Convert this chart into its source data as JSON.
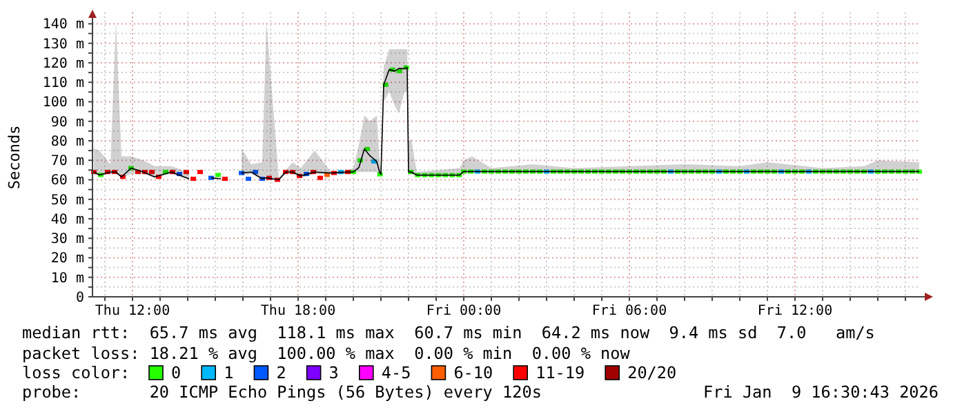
{
  "chart_data": {
    "type": "scatter",
    "ylabel": "Seconds",
    "legend_title": "loss color:",
    "legend": "bottom",
    "grid": true,
    "marker": "square",
    "xlim": [
      "2026-01-08T10:33",
      "2026-01-09T16:33"
    ],
    "xticks": [
      {
        "value": "2026-01-08T11:00",
        "label": null
      },
      {
        "value": "2026-01-08T12:00",
        "label": "Thu 12:00"
      },
      {
        "value": "2026-01-08T13:00",
        "label": null
      },
      {
        "value": "2026-01-08T14:00",
        "label": null
      },
      {
        "value": "2026-01-08T15:00",
        "label": null
      },
      {
        "value": "2026-01-08T16:00",
        "label": null
      },
      {
        "value": "2026-01-08T17:00",
        "label": null
      },
      {
        "value": "2026-01-08T18:00",
        "label": "Thu 18:00"
      },
      {
        "value": "2026-01-08T19:00",
        "label": null
      },
      {
        "value": "2026-01-08T20:00",
        "label": null
      },
      {
        "value": "2026-01-08T21:00",
        "label": null
      },
      {
        "value": "2026-01-08T22:00",
        "label": null
      },
      {
        "value": "2026-01-08T23:00",
        "label": null
      },
      {
        "value": "2026-01-09T00:00",
        "label": "Fri 00:00"
      },
      {
        "value": "2026-01-09T01:00",
        "label": null
      },
      {
        "value": "2026-01-09T02:00",
        "label": null
      },
      {
        "value": "2026-01-09T03:00",
        "label": null
      },
      {
        "value": "2026-01-09T04:00",
        "label": null
      },
      {
        "value": "2026-01-09T05:00",
        "label": null
      },
      {
        "value": "2026-01-09T06:00",
        "label": "Fri 06:00"
      },
      {
        "value": "2026-01-09T07:00",
        "label": null
      },
      {
        "value": "2026-01-09T08:00",
        "label": null
      },
      {
        "value": "2026-01-09T09:00",
        "label": null
      },
      {
        "value": "2026-01-09T10:00",
        "label": null
      },
      {
        "value": "2026-01-09T11:00",
        "label": null
      },
      {
        "value": "2026-01-09T12:00",
        "label": "Fri 12:00"
      },
      {
        "value": "2026-01-09T13:00",
        "label": null
      },
      {
        "value": "2026-01-09T14:00",
        "label": null
      },
      {
        "value": "2026-01-09T15:00",
        "label": null
      },
      {
        "value": "2026-01-09T16:00",
        "label": null
      }
    ],
    "ylim": [
      0,
      143
    ],
    "yticks": [
      0,
      {
        "value": 5,
        "label": null
      },
      {
        "value": 10,
        "label": "10 m"
      },
      {
        "value": 15,
        "label": null
      },
      {
        "value": 20,
        "label": "20 m"
      },
      {
        "value": 25,
        "label": null
      },
      {
        "value": 30,
        "label": "30 m"
      },
      {
        "value": 35,
        "label": null
      },
      {
        "value": 40,
        "label": "40 m"
      },
      {
        "value": 45,
        "label": null
      },
      {
        "value": 50,
        "label": "50 m"
      },
      {
        "value": 55,
        "label": null
      },
      {
        "value": 60,
        "label": "60 m"
      },
      {
        "value": 65,
        "label": null
      },
      {
        "value": 70,
        "label": "70 m"
      },
      {
        "value": 75,
        "label": null
      },
      {
        "value": 80,
        "label": "80 m"
      },
      {
        "value": 85,
        "label": null
      },
      {
        "value": 90,
        "label": "90 m"
      },
      {
        "value": 95,
        "label": null
      },
      {
        "value": 100,
        "label": "100 m"
      },
      {
        "value": 105,
        "label": null
      },
      {
        "value": 110,
        "label": "110 m"
      },
      {
        "value": 115,
        "label": null
      },
      {
        "value": 120,
        "label": "120 m"
      },
      {
        "value": 125,
        "label": null
      },
      {
        "value": 130,
        "label": "130 m"
      },
      {
        "value": 135,
        "label": null
      },
      {
        "value": 140,
        "label": "140 m"
      }
    ],
    "series": [
      {
        "type": "line",
        "color": "#000000",
        "marker": "none",
        "x": [
          "2026-01-08T10:36",
          "2026-01-08T10:48",
          "2026-01-08T11:12",
          "2026-01-08T11:24",
          "2026-01-08T11:36",
          "2026-01-08T11:57",
          "2026-01-08T12:24",
          "2026-01-08T12:48",
          "2026-01-08T13:24",
          "2026-01-08T14:03",
          "2026-01-08T14:12",
          "2026-01-08T14:24",
          "2026-01-08T14:36",
          "2026-01-08T14:51",
          "2026-01-08T15:12",
          "2026-01-08T15:30",
          "2026-01-08T15:57",
          "2026-01-08T16:18",
          "2026-01-08T16:42",
          "2026-01-08T16:51",
          "2026-01-08T17:18",
          "2026-01-08T17:33",
          "2026-01-08T17:48",
          "2026-01-08T18:06",
          "2026-01-08T18:36",
          "2026-01-08T19:12",
          "2026-01-08T19:48",
          "2026-01-08T20:00",
          "2026-01-08T20:12",
          "2026-01-08T20:24",
          "2026-01-08T20:36",
          "2026-01-08T20:51",
          "2026-01-08T20:57",
          "2026-01-08T21:00",
          "2026-01-08T21:06",
          "2026-01-08T21:18",
          "2026-01-08T21:30",
          "2026-01-08T21:39",
          "2026-01-08T21:51",
          "2026-01-08T21:57",
          "2026-01-08T22:00",
          "2026-01-08T22:06",
          "2026-01-08T22:18",
          "2026-01-08T23:51",
          "2026-01-09T00:00",
          "2026-01-09T00:18",
          "2026-01-09T01:00",
          "2026-01-09T02:30",
          "2026-01-09T04:00",
          "2026-01-09T06:00",
          "2026-01-09T08:00",
          "2026-01-09T10:00",
          "2026-01-09T11:00",
          "2026-01-09T13:00",
          "2026-01-09T14:30",
          "2026-01-09T15:00",
          "2026-01-09T16:30"
        ],
        "values": [
          64,
          62.5,
          64,
          64,
          61.5,
          66,
          64,
          61.5,
          64,
          60.5,
          null,
          null,
          null,
          61,
          60.5,
          null,
          63.5,
          64,
          60.5,
          61,
          60,
          64,
          64,
          62,
          64,
          63.5,
          64,
          64,
          66.3,
          75.8,
          72.3,
          69.4,
          64,
          62.8,
          108.7,
          116.5,
          115.7,
          117.1,
          117,
          117.6,
          64,
          64,
          62.4,
          62.4,
          64.2,
          64.2,
          64.2,
          64.2,
          64.2,
          64.2,
          64.2,
          64.2,
          64.2,
          64.2,
          64.2,
          64.2,
          64.2
        ],
        "lower": [
          63,
          62,
          63,
          63,
          61,
          63,
          63,
          61,
          63,
          60,
          null,
          null,
          null,
          null,
          null,
          null,
          62,
          63,
          60,
          60,
          60,
          63,
          63,
          61,
          63,
          63,
          63,
          64,
          64,
          64,
          64,
          64,
          63,
          62,
          100,
          105,
          98,
          94,
          105,
          105,
          63,
          63,
          62,
          62,
          64,
          64,
          64,
          64,
          64,
          64,
          64,
          64,
          64,
          64,
          64,
          64,
          64
        ],
        "upper": [
          76,
          75,
          68,
          141.5,
          72,
          72,
          70,
          67,
          67,
          64,
          null,
          null,
          null,
          null,
          null,
          null,
          76,
          68,
          69,
          141.5,
          61,
          65,
          69,
          66,
          75,
          64,
          65,
          66,
          78,
          93,
          90,
          93,
          70,
          64,
          118,
          127,
          127,
          127,
          127,
          127,
          80,
          81,
          64,
          66,
          70,
          72,
          66,
          68,
          66,
          67,
          68,
          67,
          69,
          66,
          67,
          70,
          69
        ]
      },
      {
        "name": "0",
        "color": "#26ff00",
        "x": [
          "2026-01-08T10:51",
          "2026-01-08T11:57",
          "2026-01-08T13:12",
          "2026-01-08T15:06",
          "2026-01-08T20:00",
          "2026-01-08T20:15",
          "2026-01-08T20:30",
          "2026-01-08T20:58",
          "2026-01-08T21:10",
          "2026-01-08T21:25",
          "2026-01-08T21:40",
          "2026-01-08T21:55",
          "2026-01-08T22:05",
          "2026-01-08T22:20",
          "2026-01-08T22:35",
          "2026-01-08T22:50",
          "2026-01-08T23:05",
          "2026-01-08T23:20",
          "2026-01-08T23:35",
          "2026-01-08T23:50",
          "2026-01-09T00:00",
          "2026-01-09T00:15",
          "2026-01-09T00:45",
          "2026-01-09T01:00",
          "2026-01-09T01:15",
          "2026-01-09T01:30",
          "2026-01-09T01:45",
          "2026-01-09T02:00",
          "2026-01-09T02:15",
          "2026-01-09T02:30",
          "2026-01-09T02:45",
          "2026-01-09T03:15",
          "2026-01-09T03:30",
          "2026-01-09T03:45",
          "2026-01-09T04:00",
          "2026-01-09T04:15",
          "2026-01-09T04:30",
          "2026-01-09T04:45",
          "2026-01-09T05:00",
          "2026-01-09T05:15",
          "2026-01-09T05:30",
          "2026-01-09T05:45",
          "2026-01-09T06:00",
          "2026-01-09T06:15",
          "2026-01-09T06:30",
          "2026-01-09T06:45",
          "2026-01-09T07:00",
          "2026-01-09T07:15",
          "2026-01-09T07:45",
          "2026-01-09T08:00",
          "2026-01-09T08:15",
          "2026-01-09T08:30",
          "2026-01-09T08:45",
          "2026-01-09T09:00",
          "2026-01-09T09:30",
          "2026-01-09T09:45",
          "2026-01-09T10:00",
          "2026-01-09T10:30",
          "2026-01-09T10:45",
          "2026-01-09T11:00",
          "2026-01-09T11:15",
          "2026-01-09T11:45",
          "2026-01-09T12:00",
          "2026-01-09T12:15",
          "2026-01-09T12:45",
          "2026-01-09T13:00",
          "2026-01-09T13:15",
          "2026-01-09T13:30",
          "2026-01-09T13:45",
          "2026-01-09T14:00",
          "2026-01-09T14:15",
          "2026-01-09T14:30",
          "2026-01-09T15:00",
          "2026-01-09T15:15",
          "2026-01-09T15:30",
          "2026-01-09T15:45",
          "2026-01-09T16:00",
          "2026-01-09T16:15",
          "2026-01-09T16:30"
        ],
        "values": [
          62.5,
          66,
          64,
          62.5,
          64,
          70,
          75.8,
          62.8,
          108.7,
          116.5,
          115.7,
          117.6,
          64,
          62.4,
          62.4,
          62.4,
          62.4,
          62.4,
          62.4,
          62.4,
          64.2,
          64.2,
          64.2,
          64.2,
          64.2,
          64.2,
          64.2,
          64.2,
          64.2,
          64.2,
          64.2,
          64.2,
          64.2,
          64.2,
          64.2,
          64.2,
          64.2,
          64.2,
          64.2,
          64.2,
          64.2,
          64.2,
          64.2,
          64.2,
          64.2,
          64.2,
          64.2,
          64.2,
          64.2,
          64.2,
          64.2,
          64.2,
          64.2,
          64.2,
          64.2,
          64.2,
          64.2,
          64.2,
          64.2,
          64.2,
          64.2,
          64.2,
          64.2,
          64.2,
          64.2,
          64.2,
          64.2,
          64.2,
          64.2,
          64.2,
          64.2,
          64.2,
          64.2,
          64.2,
          64.2,
          64.2,
          64.2,
          64.2,
          64.2
        ]
      },
      {
        "name": "1",
        "color": "#00b8ff",
        "x": [
          "2026-01-08T19:33",
          "2026-01-08T20:45",
          "2026-01-09T00:30",
          "2026-01-09T03:00",
          "2026-01-09T07:30",
          "2026-01-09T09:15",
          "2026-01-09T10:15",
          "2026-01-09T11:30",
          "2026-01-09T12:30",
          "2026-01-09T14:45"
        ],
        "values": [
          64,
          69.4,
          64.2,
          64.2,
          64.2,
          64.2,
          64.2,
          64.2,
          64.2,
          64.2
        ]
      },
      {
        "name": "2",
        "color": "#0059ff",
        "x": [
          "2026-01-08T13:42",
          "2026-01-08T14:51",
          "2026-01-08T15:57",
          "2026-01-08T16:12",
          "2026-01-08T16:27",
          "2026-01-08T16:42",
          "2026-01-08T18:18"
        ],
        "values": [
          63,
          61,
          63.5,
          60.5,
          64,
          60.5,
          63
        ]
      },
      {
        "name": "3",
        "color": "#7e00ff"
      },
      {
        "name": "4-5",
        "color": "#ff00ff"
      },
      {
        "name": "6-10",
        "color": "#ff5e00",
        "x": [
          "2026-01-08T19:03"
        ],
        "values": [
          62.5
        ]
      },
      {
        "name": "11-19",
        "color": "#ff0000",
        "x": [
          "2026-01-08T10:36",
          "2026-01-08T11:06",
          "2026-01-08T11:21",
          "2026-01-08T11:39",
          "2026-01-08T12:12",
          "2026-01-08T12:27",
          "2026-01-08T12:42",
          "2026-01-08T12:57",
          "2026-01-08T13:27",
          "2026-01-08T13:57",
          "2026-01-08T14:12",
          "2026-01-08T14:27",
          "2026-01-08T15:21",
          "2026-01-08T16:57",
          "2026-01-08T17:15",
          "2026-01-08T17:33",
          "2026-01-08T17:48",
          "2026-01-08T18:03",
          "2026-01-08T18:33",
          "2026-01-08T18:48",
          "2026-01-08T19:18",
          "2026-01-08T19:48"
        ],
        "values": [
          64,
          64,
          64,
          61.5,
          64,
          64,
          64,
          61.5,
          64,
          64,
          60.5,
          64,
          60.5,
          61,
          60,
          64,
          64,
          62,
          64,
          61,
          63.5,
          64
        ]
      },
      {
        "name": "20/20",
        "color": "#a10000"
      }
    ],
    "annotations": [
      "median rtt:  65.7 ms avg  118.1 ms max  60.7 ms min  64.2 ms now  9.4 ms sd  7.0   am/s",
      "packet loss: 18.21 % avg  100.00 % max  0.00 % min  0.00 % now",
      "probe:       20 ICMP Echo Pings (56 Bytes) every 120s",
      "Fri Jan  9 16:30:43 2026"
    ]
  }
}
